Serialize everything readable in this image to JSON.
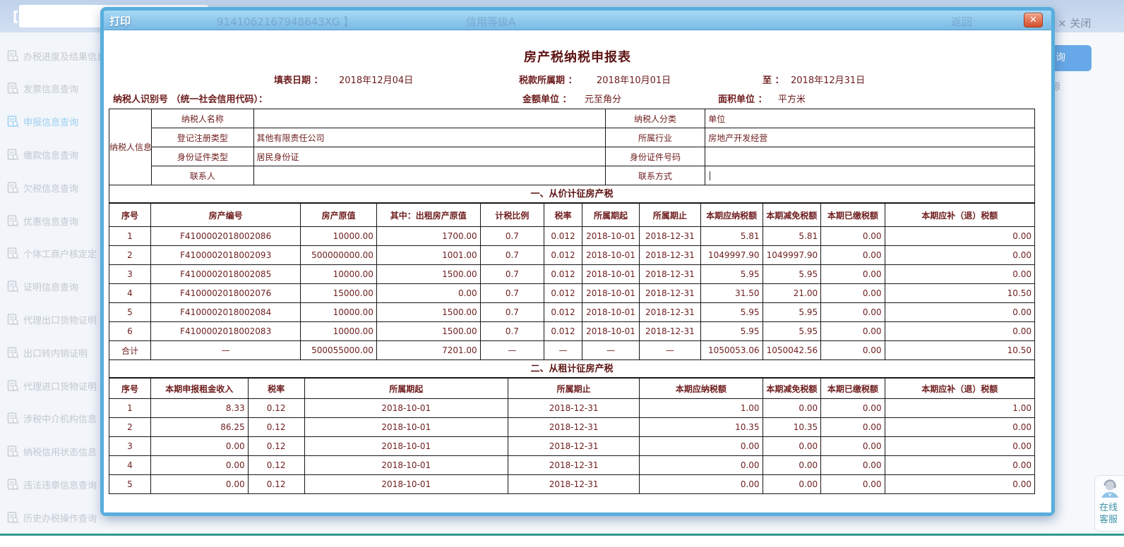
{
  "page_header": {
    "bracket": "【",
    "credit_code": "9141062167948643XG 】",
    "credit_rating": "信用等级A",
    "back_label": "返回",
    "close_label": "× 关闭"
  },
  "sidebar": {
    "items": [
      {
        "label": "办税进度及结果信息",
        "active": false
      },
      {
        "label": "发票信息查询",
        "active": false
      },
      {
        "label": "申报信息查询",
        "active": true
      },
      {
        "label": "缴款信息查询",
        "active": false
      },
      {
        "label": "欠税信息查询",
        "active": false
      },
      {
        "label": "优惠信息查询",
        "active": false
      },
      {
        "label": "个体工商户核定定",
        "active": false
      },
      {
        "label": "证明信息查询",
        "active": false
      },
      {
        "label": "代理出口货物证明",
        "active": false
      },
      {
        "label": "出口转内销证明",
        "active": false
      },
      {
        "label": "代理进口货物证明",
        "active": false
      },
      {
        "label": "涉税中介机构信息",
        "active": false
      },
      {
        "label": "纳税信用状态信息",
        "active": false
      },
      {
        "label": "违法违章信息查询",
        "active": false
      },
      {
        "label": "历史办税操作查询",
        "active": false
      }
    ]
  },
  "background_fragments": {
    "query_button_partial": "询",
    "source_text_partial": "源"
  },
  "customer_service": {
    "line1": "在线",
    "line2": "客服"
  },
  "modal": {
    "title": "打印",
    "close_icon": "✕"
  },
  "form": {
    "title": "房产税纳税申报表",
    "fill_date_label": "填表日期 ：",
    "fill_date": "2018年12月04日",
    "period_label": "税款所属期 ：",
    "period_start": "2018年10月01日",
    "to_label": "至 ：",
    "period_end": "2018年12月31日",
    "taxpayer_id_label": "纳税人识别号 （统一社会信用代码）：",
    "amount_unit_label": "金额单位 ：",
    "amount_unit": "元至角分",
    "area_unit_label": "面积单位 ：",
    "area_unit": "平方米",
    "taxpayer_info": {
      "group_label": "纳税人信息",
      "rows": [
        {
          "label_left": "纳税人名称",
          "value_left": "",
          "label_right": "纳税人分类",
          "value_right": "单位"
        },
        {
          "label_left": "登记注册类型",
          "value_left": "其他有限责任公司",
          "label_right": "所属行业",
          "value_right": "房地产开发经营"
        },
        {
          "label_left": "身份证件类型",
          "value_left": "居民身份证",
          "label_right": "身份证件号码",
          "value_right": ""
        },
        {
          "label_left": "联系人",
          "value_left": "",
          "label_right": "联系方式",
          "value_right": ""
        }
      ]
    },
    "section1": {
      "title": "一、从价计征房产税",
      "headers": [
        "序号",
        "房产编号",
        "房产原值",
        "其中：出租房产原值",
        "计税比例",
        "税率",
        "所属期起",
        "所属期止",
        "本期应纳税额",
        "本期减免税额",
        "本期已缴税额",
        "本期应补（退）税额"
      ],
      "rows": [
        [
          "1",
          "F4100002018002086",
          "10000.00",
          "1700.00",
          "0.7",
          "0.012",
          "2018-10-01",
          "2018-12-31",
          "5.81",
          "5.81",
          "0.00",
          "0.00"
        ],
        [
          "2",
          "F4100002018002093",
          "500000000.00",
          "1001.00",
          "0.7",
          "0.012",
          "2018-10-01",
          "2018-12-31",
          "1049997.90",
          "1049997.90",
          "0.00",
          "0.00"
        ],
        [
          "3",
          "F4100002018002085",
          "10000.00",
          "1500.00",
          "0.7",
          "0.012",
          "2018-10-01",
          "2018-12-31",
          "5.95",
          "5.95",
          "0.00",
          "0.00"
        ],
        [
          "4",
          "F4100002018002076",
          "15000.00",
          "0.00",
          "0.7",
          "0.012",
          "2018-10-01",
          "2018-12-31",
          "31.50",
          "21.00",
          "0.00",
          "10.50"
        ],
        [
          "5",
          "F4100002018002084",
          "10000.00",
          "1500.00",
          "0.7",
          "0.012",
          "2018-10-01",
          "2018-12-31",
          "5.95",
          "5.95",
          "0.00",
          "0.00"
        ],
        [
          "6",
          "F4100002018002083",
          "10000.00",
          "1500.00",
          "0.7",
          "0.012",
          "2018-10-01",
          "2018-12-31",
          "5.95",
          "5.95",
          "0.00",
          "0.00"
        ]
      ],
      "total_row": [
        "合计",
        "—",
        "500055000.00",
        "7201.00",
        "—",
        "—",
        "—",
        "—",
        "1050053.06",
        "1050042.56",
        "0.00",
        "10.50"
      ]
    },
    "section2": {
      "title": "二、从租计征房产税",
      "headers": [
        "序号",
        "本期申报租金收入",
        "税率",
        "所属期起",
        "所属期止",
        "本期应纳税额",
        "本期减免税额",
        "本期已缴税额",
        "本期应补（退）税额"
      ],
      "rows": [
        [
          "1",
          "8.33",
          "0.12",
          "2018-10-01",
          "2018-12-31",
          "1.00",
          "0.00",
          "0.00",
          "1.00"
        ],
        [
          "2",
          "86.25",
          "0.12",
          "2018-10-01",
          "2018-12-31",
          "10.35",
          "10.35",
          "0.00",
          "0.00"
        ],
        [
          "3",
          "0.00",
          "0.12",
          "2018-10-01",
          "2018-12-31",
          "0.00",
          "0.00",
          "0.00",
          "0.00"
        ],
        [
          "4",
          "0.00",
          "0.12",
          "2018-10-01",
          "2018-12-31",
          "0.00",
          "0.00",
          "0.00",
          "0.00"
        ],
        [
          "5",
          "0.00",
          "0.12",
          "2018-10-01",
          "2018-12-31",
          "0.00",
          "0.00",
          "0.00",
          "0.00"
        ]
      ]
    }
  }
}
